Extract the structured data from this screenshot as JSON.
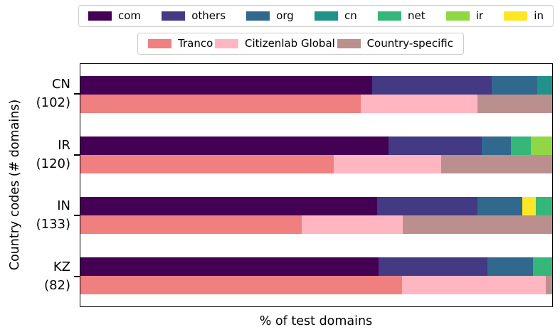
{
  "chart_data": {
    "type": "bar",
    "orientation": "horizontal-stacked",
    "title": "",
    "xlabel": "% of test domains",
    "ylabel": "Country codes (# domains)",
    "xlim": [
      0,
      100
    ],
    "x_tick_labels": [],
    "grid": false,
    "colors": {
      "com": "#440154",
      "others": "#443983",
      "org": "#31688e",
      "cn": "#21918c",
      "net": "#35b779",
      "ir": "#90d743",
      "in": "#fde725",
      "Tranco": "#f08080",
      "Citizenlab Global": "#ffb6c1",
      "Country-specific": "#bc8f8f"
    },
    "legends": {
      "tld": {
        "position": "top",
        "entries": [
          {
            "label": "com",
            "color": "#440154"
          },
          {
            "label": "others",
            "color": "#443983"
          },
          {
            "label": "org",
            "color": "#31688e"
          },
          {
            "label": "cn",
            "color": "#21918c"
          },
          {
            "label": "net",
            "color": "#35b779"
          },
          {
            "label": "ir",
            "color": "#90d743"
          },
          {
            "label": "in",
            "color": "#fde725"
          }
        ]
      },
      "source": {
        "position": "top",
        "entries": [
          {
            "label": "Tranco",
            "color": "#f08080"
          },
          {
            "label": "Citizenlab Global",
            "color": "#ffb6c1"
          },
          {
            "label": "Country-specific",
            "color": "#bc8f8f"
          }
        ]
      }
    },
    "groups": [
      {
        "code": "CN",
        "count_label": "(102)",
        "bars": [
          {
            "name": "tld",
            "segments": [
              {
                "label": "com",
                "pct": 61.8
              },
              {
                "label": "others",
                "pct": 25.4
              },
              {
                "label": "org",
                "pct": 9.7
              },
              {
                "label": "cn",
                "pct": 3.1
              }
            ]
          },
          {
            "name": "source",
            "segments": [
              {
                "label": "Tranco",
                "pct": 59.5
              },
              {
                "label": "Citizenlab Global",
                "pct": 24.7
              },
              {
                "label": "Country-specific",
                "pct": 15.8
              }
            ]
          }
        ]
      },
      {
        "code": "IR",
        "count_label": "(120)",
        "bars": [
          {
            "name": "tld",
            "segments": [
              {
                "label": "com",
                "pct": 65.3
              },
              {
                "label": "others",
                "pct": 19.7
              },
              {
                "label": "org",
                "pct": 6.3
              },
              {
                "label": "net",
                "pct": 4.2
              },
              {
                "label": "ir",
                "pct": 4.5
              }
            ]
          },
          {
            "name": "source",
            "segments": [
              {
                "label": "Tranco",
                "pct": 53.7
              },
              {
                "label": "Citizenlab Global",
                "pct": 22.8
              },
              {
                "label": "Country-specific",
                "pct": 23.5
              }
            ]
          }
        ]
      },
      {
        "code": "IN",
        "count_label": "(133)",
        "bars": [
          {
            "name": "tld",
            "segments": [
              {
                "label": "com",
                "pct": 62.9
              },
              {
                "label": "others",
                "pct": 21.2
              },
              {
                "label": "org",
                "pct": 9.6
              },
              {
                "label": "in",
                "pct": 2.9
              },
              {
                "label": "net",
                "pct": 3.4
              }
            ]
          },
          {
            "name": "source",
            "segments": [
              {
                "label": "Tranco",
                "pct": 46.9
              },
              {
                "label": "Citizenlab Global",
                "pct": 21.4
              },
              {
                "label": "Country-specific",
                "pct": 31.7
              }
            ]
          }
        ]
      },
      {
        "code": "KZ",
        "count_label": "(82)",
        "bars": [
          {
            "name": "tld",
            "segments": [
              {
                "label": "com",
                "pct": 63.2
              },
              {
                "label": "others",
                "pct": 23.1
              },
              {
                "label": "org",
                "pct": 9.6
              },
              {
                "label": "net",
                "pct": 4.1
              }
            ]
          },
          {
            "name": "source",
            "segments": [
              {
                "label": "Tranco",
                "pct": 68.1
              },
              {
                "label": "Citizenlab Global",
                "pct": 30.5
              },
              {
                "label": "Country-specific",
                "pct": 1.4
              }
            ]
          }
        ]
      }
    ]
  }
}
